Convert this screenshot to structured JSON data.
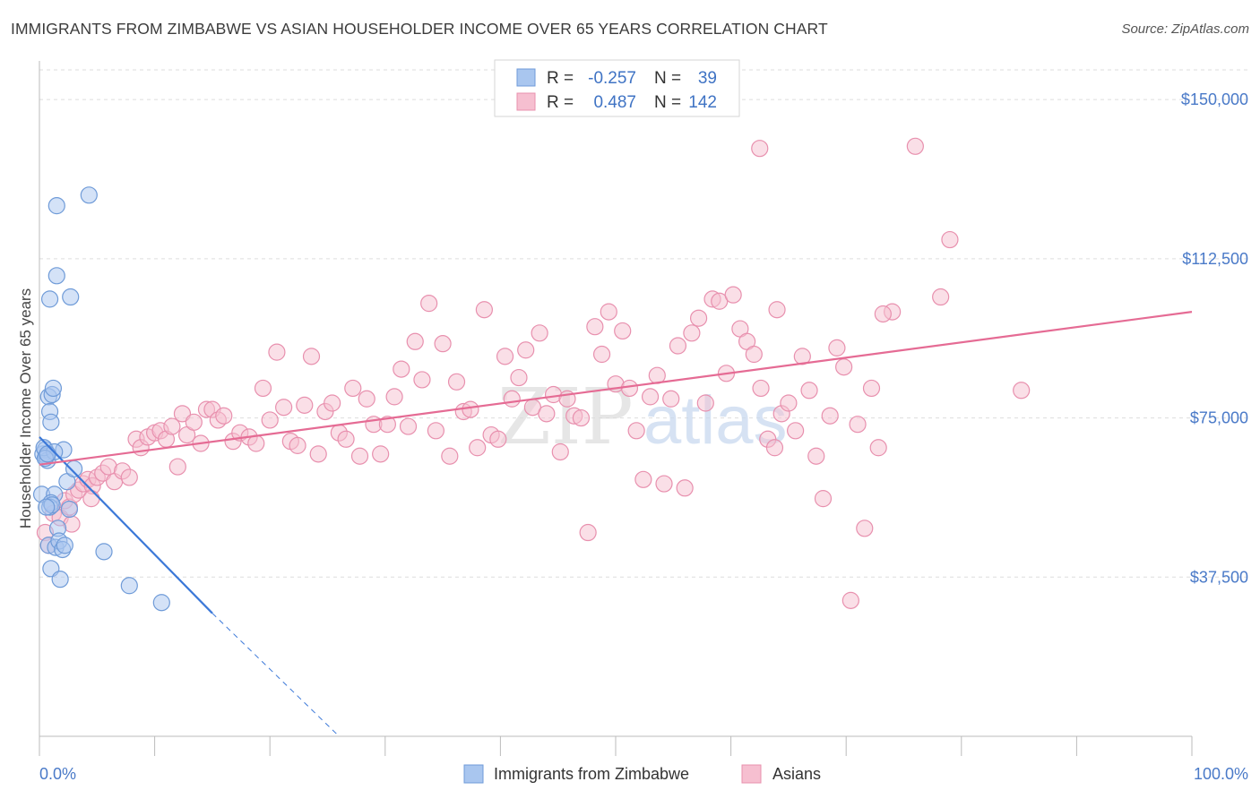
{
  "title": "IMMIGRANTS FROM ZIMBABWE VS ASIAN HOUSEHOLDER INCOME OVER 65 YEARS CORRELATION CHART",
  "source": "Source: ZipAtlas.com",
  "watermark": {
    "zip": "ZIP",
    "atlas": "atlas"
  },
  "colors": {
    "blue_fill": "#a9c6ef",
    "blue_stroke": "#6f9bd8",
    "blue_line": "#3b78d8",
    "pink_fill": "#f6bfd0",
    "pink_stroke": "#e890ae",
    "pink_line": "#e56b94",
    "axis_text": "#4a7ac8",
    "grid": "#dddddd"
  },
  "legend": {
    "r_label": "R =",
    "n_label": "N =",
    "rows": [
      {
        "r": "-0.257",
        "n": "39",
        "color": "blue"
      },
      {
        "r": "0.487",
        "n": "142",
        "color": "pink"
      }
    ]
  },
  "chart_data": {
    "type": "scatter",
    "title": "IMMIGRANTS FROM ZIMBABWE VS ASIAN HOUSEHOLDER INCOME OVER 65 YEARS CORRELATION CHART",
    "xlabel": "",
    "ylabel": "Householder Income Over 65 years",
    "xlim": [
      0,
      100
    ],
    "ylim": [
      0,
      157000
    ],
    "x_tick_labels": [
      "0.0%",
      "100.0%"
    ],
    "y_ticks": [
      37500,
      75000,
      112500,
      150000
    ],
    "y_tick_labels": [
      "$37,500",
      "$75,000",
      "$112,500",
      "$150,000"
    ],
    "grid": true,
    "legend_placement": "top-center",
    "series": [
      {
        "name": "Immigrants from Zimbabwe",
        "color": "blue",
        "points": [
          [
            0.2,
            57000
          ],
          [
            0.3,
            66500
          ],
          [
            0.5,
            67500
          ],
          [
            0.6,
            66000
          ],
          [
            0.7,
            65000
          ],
          [
            0.4,
            68000
          ],
          [
            0.8,
            80000
          ],
          [
            0.9,
            76500
          ],
          [
            1.0,
            74000
          ],
          [
            1.1,
            80500
          ],
          [
            1.2,
            82000
          ],
          [
            1.3,
            57000
          ],
          [
            1.0,
            55000
          ],
          [
            0.9,
            54000
          ],
          [
            0.8,
            45000
          ],
          [
            1.4,
            44500
          ],
          [
            1.6,
            49000
          ],
          [
            1.7,
            46000
          ],
          [
            2.0,
            44000
          ],
          [
            1.0,
            39500
          ],
          [
            1.8,
            37000
          ],
          [
            2.1,
            67500
          ],
          [
            2.4,
            60000
          ],
          [
            2.6,
            53500
          ],
          [
            3.0,
            63000
          ],
          [
            5.6,
            43500
          ],
          [
            7.8,
            35500
          ],
          [
            10.6,
            31500
          ],
          [
            1.5,
            125000
          ],
          [
            4.3,
            127500
          ],
          [
            1.5,
            108500
          ],
          [
            0.9,
            103000
          ],
          [
            2.7,
            103500
          ],
          [
            1.3,
            67000
          ],
          [
            0.5,
            65500
          ],
          [
            0.7,
            66500
          ],
          [
            1.1,
            54500
          ],
          [
            0.6,
            54000
          ],
          [
            2.2,
            45000
          ]
        ],
        "trend": {
          "x0": 0,
          "y0": 70500,
          "x1": 15,
          "y1": 29000,
          "dashed_to_x": 26,
          "dashed_to_y": 0
        }
      },
      {
        "name": "Asians",
        "color": "pink",
        "points": [
          [
            0.5,
            48000
          ],
          [
            0.8,
            45000
          ],
          [
            1.2,
            52500
          ],
          [
            1.8,
            51500
          ],
          [
            2.2,
            55500
          ],
          [
            2.6,
            54000
          ],
          [
            3.0,
            57000
          ],
          [
            3.4,
            58000
          ],
          [
            3.8,
            59500
          ],
          [
            4.2,
            60500
          ],
          [
            4.6,
            59000
          ],
          [
            5.0,
            61000
          ],
          [
            5.5,
            62000
          ],
          [
            6.0,
            63500
          ],
          [
            6.5,
            60000
          ],
          [
            7.2,
            62500
          ],
          [
            7.8,
            61000
          ],
          [
            8.4,
            70000
          ],
          [
            8.8,
            68000
          ],
          [
            9.4,
            70500
          ],
          [
            10.0,
            71500
          ],
          [
            10.5,
            72000
          ],
          [
            11.0,
            70000
          ],
          [
            11.5,
            73000
          ],
          [
            12.0,
            63500
          ],
          [
            12.4,
            76000
          ],
          [
            12.8,
            71000
          ],
          [
            13.4,
            74000
          ],
          [
            14.0,
            69000
          ],
          [
            14.5,
            77000
          ],
          [
            15.0,
            77000
          ],
          [
            15.5,
            74500
          ],
          [
            16.0,
            75500
          ],
          [
            16.8,
            69500
          ],
          [
            17.4,
            71500
          ],
          [
            18.2,
            70500
          ],
          [
            18.8,
            69000
          ],
          [
            19.4,
            82000
          ],
          [
            20.0,
            74500
          ],
          [
            20.6,
            90500
          ],
          [
            21.2,
            77500
          ],
          [
            21.8,
            69500
          ],
          [
            22.4,
            68500
          ],
          [
            23.0,
            78000
          ],
          [
            23.6,
            89500
          ],
          [
            24.2,
            66500
          ],
          [
            24.8,
            76500
          ],
          [
            25.4,
            78500
          ],
          [
            26.0,
            71500
          ],
          [
            26.6,
            70000
          ],
          [
            27.2,
            82000
          ],
          [
            27.8,
            66000
          ],
          [
            28.4,
            79500
          ],
          [
            29.0,
            73500
          ],
          [
            29.6,
            66500
          ],
          [
            30.2,
            73500
          ],
          [
            30.8,
            80000
          ],
          [
            31.4,
            86500
          ],
          [
            32.0,
            73000
          ],
          [
            32.6,
            93000
          ],
          [
            33.2,
            84000
          ],
          [
            33.8,
            102000
          ],
          [
            34.4,
            72000
          ],
          [
            35.0,
            92500
          ],
          [
            35.6,
            66000
          ],
          [
            36.2,
            83500
          ],
          [
            36.8,
            76500
          ],
          [
            37.4,
            77000
          ],
          [
            38.0,
            68000
          ],
          [
            38.6,
            100500
          ],
          [
            39.2,
            71000
          ],
          [
            39.8,
            70000
          ],
          [
            40.4,
            89500
          ],
          [
            41.0,
            79500
          ],
          [
            41.6,
            84500
          ],
          [
            42.2,
            91000
          ],
          [
            42.8,
            77500
          ],
          [
            43.4,
            95000
          ],
          [
            44.0,
            76000
          ],
          [
            44.6,
            80500
          ],
          [
            45.2,
            67000
          ],
          [
            45.8,
            79500
          ],
          [
            46.4,
            75500
          ],
          [
            47.0,
            75000
          ],
          [
            47.6,
            48000
          ],
          [
            48.2,
            96500
          ],
          [
            48.8,
            90000
          ],
          [
            49.4,
            100000
          ],
          [
            50.0,
            83000
          ],
          [
            50.6,
            95500
          ],
          [
            51.2,
            82000
          ],
          [
            51.8,
            72000
          ],
          [
            52.4,
            60500
          ],
          [
            53.0,
            80000
          ],
          [
            53.6,
            85000
          ],
          [
            54.2,
            59500
          ],
          [
            54.8,
            79500
          ],
          [
            55.4,
            92000
          ],
          [
            56.0,
            58500
          ],
          [
            56.6,
            95000
          ],
          [
            57.2,
            98500
          ],
          [
            57.8,
            78500
          ],
          [
            58.4,
            103000
          ],
          [
            59.0,
            102500
          ],
          [
            59.6,
            85500
          ],
          [
            60.2,
            104000
          ],
          [
            60.8,
            96000
          ],
          [
            61.4,
            93000
          ],
          [
            62.0,
            90000
          ],
          [
            62.6,
            82000
          ],
          [
            63.2,
            70000
          ],
          [
            63.8,
            68000
          ],
          [
            64.4,
            76000
          ],
          [
            65.0,
            78500
          ],
          [
            65.6,
            72000
          ],
          [
            66.2,
            89500
          ],
          [
            66.8,
            81500
          ],
          [
            67.4,
            66000
          ],
          [
            68.0,
            56000
          ],
          [
            68.6,
            75500
          ],
          [
            69.2,
            91500
          ],
          [
            69.8,
            87000
          ],
          [
            70.4,
            32000
          ],
          [
            71.0,
            73500
          ],
          [
            71.6,
            49000
          ],
          [
            72.2,
            82000
          ],
          [
            72.8,
            68000
          ],
          [
            74.0,
            100000
          ],
          [
            76.0,
            139000
          ],
          [
            78.2,
            103500
          ],
          [
            79.0,
            117000
          ],
          [
            85.2,
            81500
          ],
          [
            73.2,
            99500
          ],
          [
            62.5,
            138500
          ],
          [
            64.0,
            100500
          ],
          [
            4.5,
            56000
          ],
          [
            2.8,
            50000
          ]
        ],
        "trend": {
          "x0": 0,
          "y0": 64000,
          "x1": 100,
          "y1": 100000
        }
      }
    ]
  },
  "bottom_legend": [
    {
      "label": "Immigrants from Zimbabwe",
      "color": "blue"
    },
    {
      "label": "Asians",
      "color": "pink"
    }
  ]
}
